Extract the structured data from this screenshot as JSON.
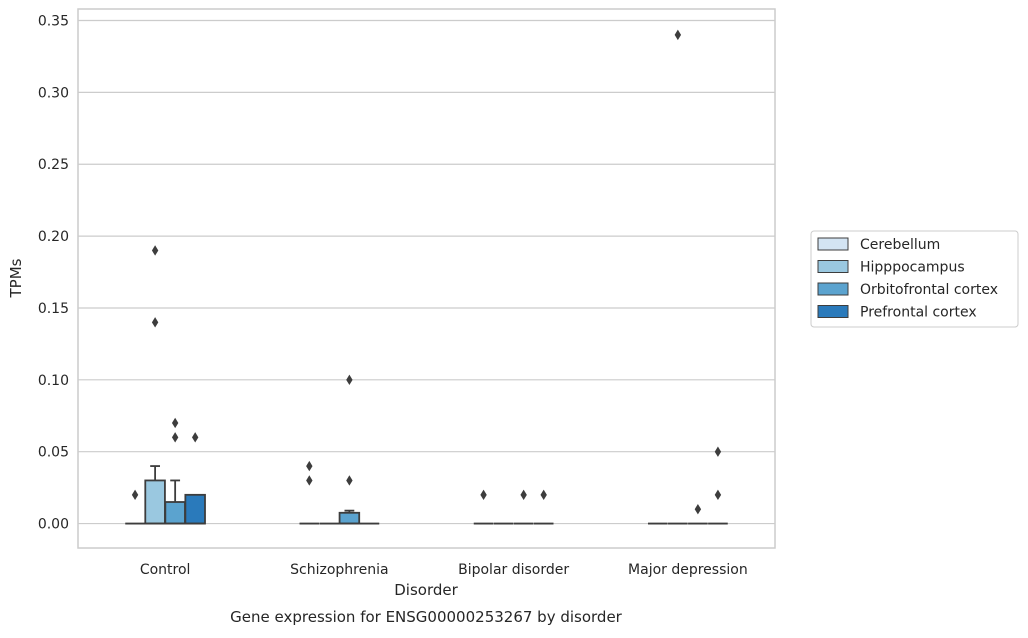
{
  "chart_data": {
    "type": "box",
    "title": "",
    "caption": "Gene expression for ENSG00000253267 by disorder",
    "xlabel": "Disorder",
    "ylabel": "TPMs",
    "ylim": [
      -0.017,
      0.358
    ],
    "yticks": [
      0.0,
      0.05,
      0.1,
      0.15,
      0.2,
      0.25,
      0.3,
      0.35
    ],
    "ytick_labels": [
      "0.00",
      "0.05",
      "0.10",
      "0.15",
      "0.20",
      "0.25",
      "0.30",
      "0.35"
    ],
    "categories": [
      "Control",
      "Schizophrenia",
      "Bipolar disorder",
      "Major depression"
    ],
    "grid": "horizontal",
    "legend_position": "right",
    "series": [
      {
        "name": "Cerebellum",
        "color": "#d3e4f3",
        "boxes": [
          {
            "q1": 0,
            "median": 0,
            "q3": 0,
            "whisker_low": 0,
            "whisker_high": 0,
            "outliers": [
              0.02
            ]
          },
          {
            "q1": 0,
            "median": 0,
            "q3": 0,
            "whisker_low": 0,
            "whisker_high": 0,
            "outliers": [
              0.03,
              0.04
            ]
          },
          {
            "q1": 0,
            "median": 0,
            "q3": 0,
            "whisker_low": 0,
            "whisker_high": 0,
            "outliers": [
              0.02
            ]
          },
          {
            "q1": 0,
            "median": 0,
            "q3": 0,
            "whisker_low": 0,
            "whisker_high": 0,
            "outliers": []
          }
        ]
      },
      {
        "name": "Hipppocampus",
        "color": "#9ac8e0",
        "boxes": [
          {
            "q1": 0,
            "median": 0,
            "q3": 0.03,
            "whisker_low": 0,
            "whisker_high": 0.04,
            "outliers": [
              0.14,
              0.19
            ]
          },
          {
            "q1": 0,
            "median": 0,
            "q3": 0,
            "whisker_low": 0,
            "whisker_high": 0,
            "outliers": []
          },
          {
            "q1": 0,
            "median": 0,
            "q3": 0,
            "whisker_low": 0,
            "whisker_high": 0,
            "outliers": []
          },
          {
            "q1": 0,
            "median": 0,
            "q3": 0,
            "whisker_low": 0,
            "whisker_high": 0,
            "outliers": [
              0.34
            ]
          }
        ]
      },
      {
        "name": "Orbitofrontal cortex",
        "color": "#5ba3cf",
        "boxes": [
          {
            "q1": 0,
            "median": 0,
            "q3": 0.015,
            "whisker_low": 0,
            "whisker_high": 0.03,
            "outliers": [
              0.06,
              0.07
            ]
          },
          {
            "q1": 0,
            "median": 0,
            "q3": 0.0075,
            "whisker_low": 0,
            "whisker_high": 0.009,
            "outliers": [
              0.03,
              0.1
            ]
          },
          {
            "q1": 0,
            "median": 0,
            "q3": 0,
            "whisker_low": 0,
            "whisker_high": 0,
            "outliers": [
              0.02
            ]
          },
          {
            "q1": 0,
            "median": 0,
            "q3": 0,
            "whisker_low": 0,
            "whisker_high": 0,
            "outliers": [
              0.01
            ]
          }
        ]
      },
      {
        "name": "Prefrontal cortex",
        "color": "#2a7abb",
        "boxes": [
          {
            "q1": 0,
            "median": 0,
            "q3": 0.02,
            "whisker_low": 0,
            "whisker_high": 0.02,
            "outliers": [
              0.06
            ]
          },
          {
            "q1": 0,
            "median": 0,
            "q3": 0,
            "whisker_low": 0,
            "whisker_high": 0,
            "outliers": []
          },
          {
            "q1": 0,
            "median": 0,
            "q3": 0,
            "whisker_low": 0,
            "whisker_high": 0,
            "outliers": [
              0.02
            ]
          },
          {
            "q1": 0,
            "median": 0,
            "q3": 0,
            "whisker_low": 0,
            "whisker_high": 0,
            "outliers": [
              0.02,
              0.05
            ]
          }
        ]
      }
    ]
  }
}
